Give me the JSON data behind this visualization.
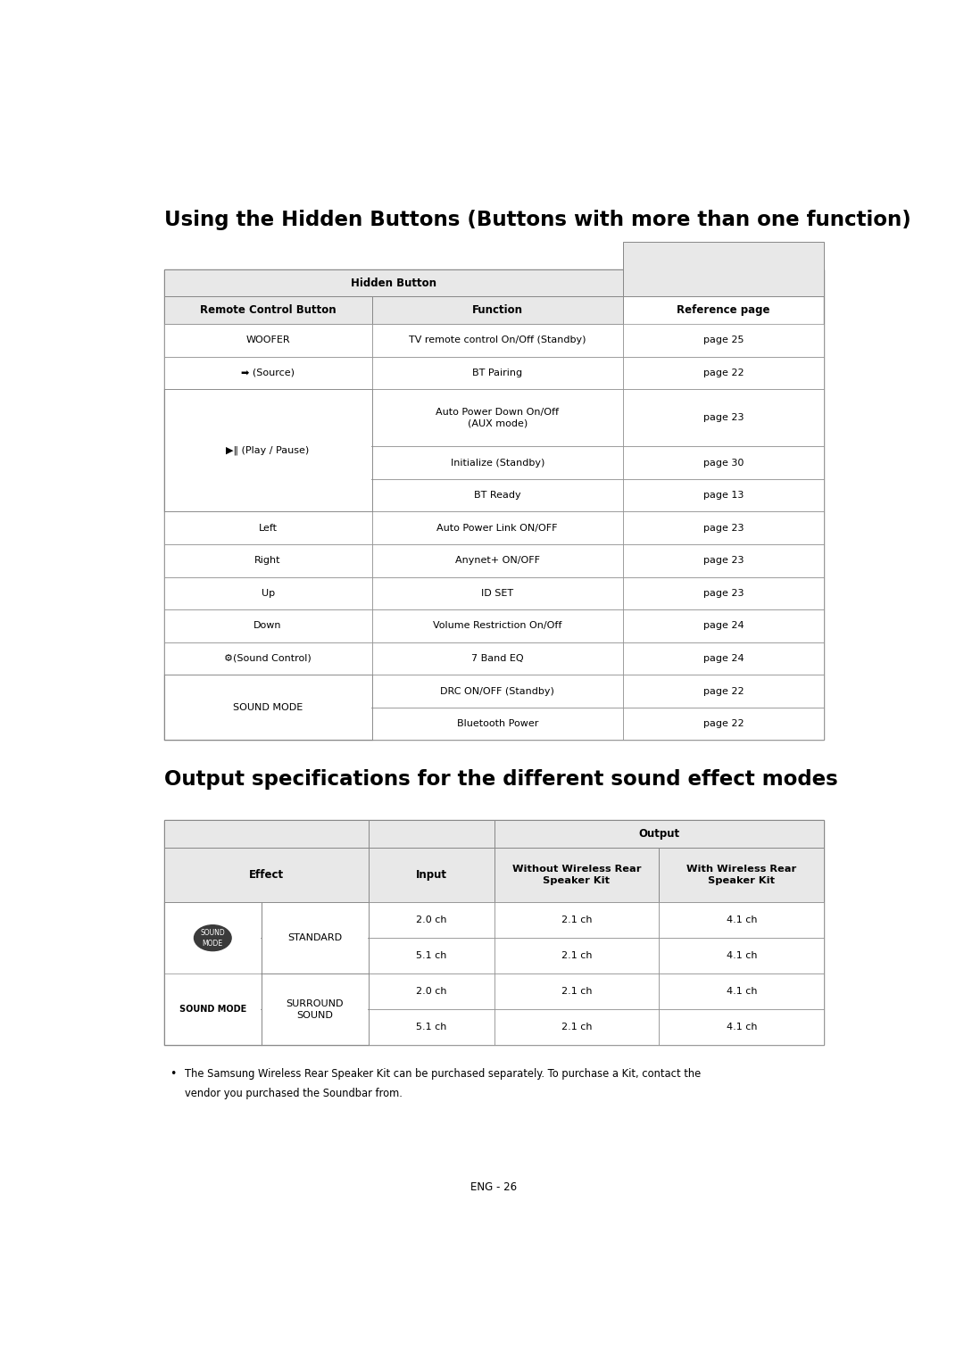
{
  "title1": "Using the Hidden Buttons (Buttons with more than one function)",
  "title2": "Output specifications for the different sound effect modes",
  "page_footer": "ENG - 26",
  "bullet_text_line1": "The Samsung Wireless Rear Speaker Kit can be purchased separately. To purchase a Kit, contact the",
  "bullet_text_line2": "vendor you purchased the Soundbar from.",
  "colors": {
    "header_bg": "#e8e8e8",
    "white": "#ffffff",
    "border": "#888888",
    "text": "#000000",
    "icon_bg": "#3a3a3a",
    "icon_text": "#ffffff"
  },
  "background": "#ffffff"
}
